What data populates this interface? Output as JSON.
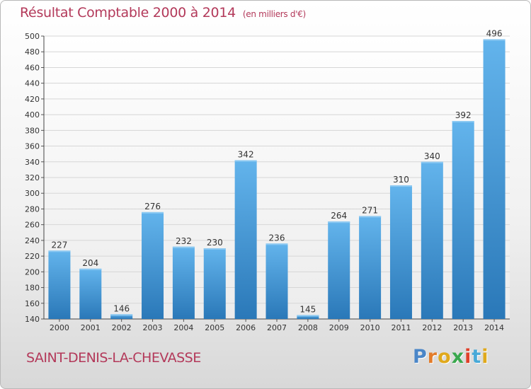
{
  "colors": {
    "title": "#b3395a",
    "bar_top": "#63b4ec",
    "bar_bottom": "#2a78b8",
    "grid": "#d6d6d6"
  },
  "chart_data": {
    "type": "bar",
    "title": "Résultat Comptable 2000 à 2014",
    "subtitle": "(en milliers d'€)",
    "xlabel": "",
    "ylabel": "",
    "categories": [
      "2000",
      "2001",
      "2002",
      "2003",
      "2004",
      "2005",
      "2006",
      "2007",
      "2008",
      "2009",
      "2010",
      "2011",
      "2012",
      "2013",
      "2014"
    ],
    "values": [
      227,
      204,
      146,
      276,
      232,
      230,
      342,
      236,
      145,
      264,
      271,
      310,
      340,
      392,
      496
    ],
    "ylim": [
      140,
      500
    ],
    "yticks": [
      140,
      160,
      180,
      200,
      220,
      240,
      260,
      280,
      300,
      320,
      340,
      360,
      380,
      400,
      420,
      440,
      460,
      480,
      500
    ],
    "grid": true,
    "data_labels": true
  },
  "footer": {
    "place": "SAINT-DENIS-LA-CHEVASSE",
    "logo_letters": [
      "P",
      "r",
      "o",
      "x",
      "i",
      "t",
      "i"
    ],
    "logo_colors": [
      "#4a86c8",
      "#e37c2a",
      "#e0a91c",
      "#3aa84e",
      "#e0402a",
      "#47a9d8",
      "#e0a91c"
    ]
  }
}
